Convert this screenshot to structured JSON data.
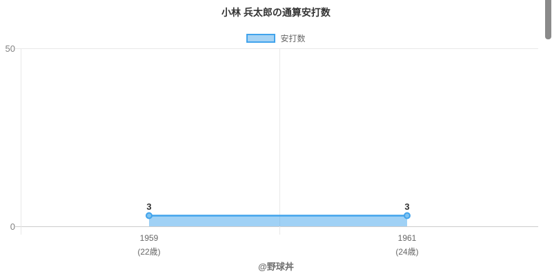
{
  "header": {
    "title": "小林 兵太郎の通算安打数"
  },
  "legend": {
    "position": "top",
    "items": [
      {
        "label": "安打数"
      }
    ]
  },
  "chart_data": {
    "type": "area",
    "title": "小林 兵太郎の通算安打数",
    "categories": [
      "1959",
      "1961"
    ],
    "category_sublabels": [
      "(22歳)",
      "(24歳)"
    ],
    "series": [
      {
        "name": "安打数",
        "values": [
          3,
          3
        ]
      }
    ],
    "point_labels": [
      "3",
      "3"
    ],
    "xlabel": "",
    "ylabel": "",
    "ylim": [
      0,
      50
    ],
    "yticks": [
      0,
      50
    ],
    "grid": true,
    "legend_position": "top",
    "colors": {
      "line": "#41a3ec",
      "fill": "#a6d3f4",
      "fill_opacity": 0.5,
      "marker_fill": "#7fc3f0",
      "value_label": "#333333",
      "axis_text": "#808080",
      "tick_text": "#666666"
    }
  },
  "footer": {
    "credit": "@野球丼"
  }
}
